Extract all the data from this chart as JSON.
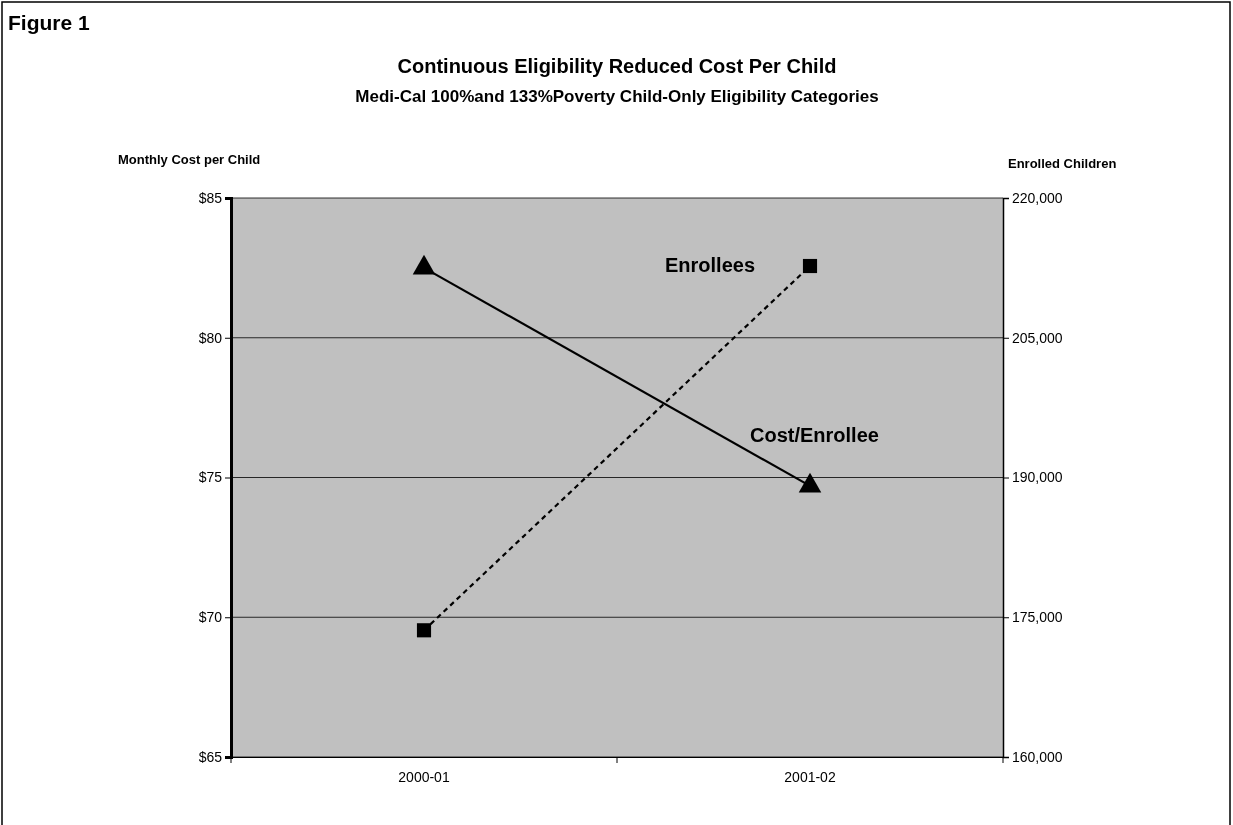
{
  "chart_data": {
    "type": "line",
    "title": "Continuous Eligibility Reduced Cost Per Child",
    "subtitle": "Medi-Cal 100%and 133%Poverty Child-Only Eligibility Categories",
    "annotations": [
      "Figure 1"
    ],
    "ylabel": "Monthly Cost per Child",
    "y2label": "Enrolled Children",
    "categories": [
      "2000-01",
      "2001-02"
    ],
    "ylim": [
      65,
      85
    ],
    "yticks": [
      {
        "value": 65,
        "label": "$65"
      },
      {
        "value": 70,
        "label": "$70"
      },
      {
        "value": 75,
        "label": "$75"
      },
      {
        "value": 80,
        "label": "$80"
      },
      {
        "value": 85,
        "label": "$85"
      }
    ],
    "y2lim": [
      160000,
      220000
    ],
    "y2ticks": [
      {
        "value": 160000,
        "label": "160,000"
      },
      {
        "value": 175000,
        "label": "175,000"
      },
      {
        "value": 190000,
        "label": "190,000"
      },
      {
        "value": 205000,
        "label": "205,000"
      },
      {
        "value": 220000,
        "label": "220,000"
      }
    ],
    "grid": "y",
    "series": [
      {
        "name": "Cost/Enrollee",
        "color": "#000000",
        "values": [
          82.5,
          74.7
        ],
        "marker": "triangle",
        "line_style": "solid"
      },
      {
        "name": "Enrollees",
        "color": "#000000",
        "values": [
          173600,
          212700
        ],
        "axis": "y2",
        "marker": "square",
        "line_style": "dashed"
      }
    ]
  }
}
